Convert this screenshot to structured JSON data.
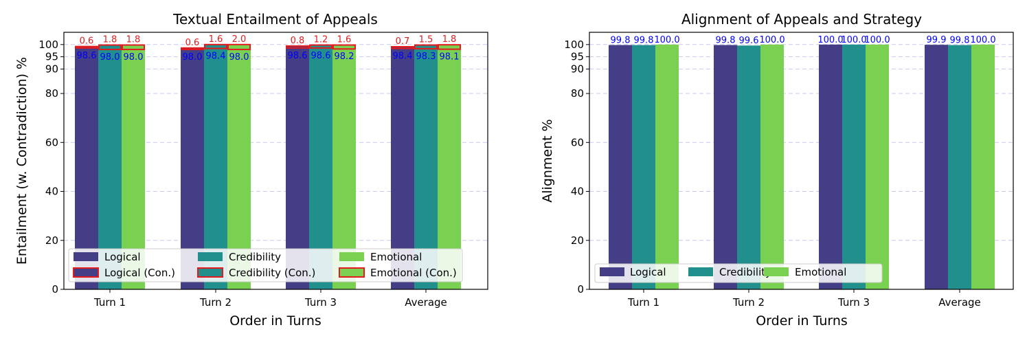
{
  "colors": {
    "logical": "#433E85",
    "credibility": "#21908C",
    "emotional": "#7AD151",
    "contradiction_edge": "#E41A1C",
    "entail_label": "#0000FF",
    "con_label": "#E41A1C",
    "grid": "#C9C9F0"
  },
  "chart_data": [
    {
      "type": "bar",
      "title": "Textual Entailment of Appeals",
      "xlabel": "Order in Turns",
      "ylabel": "Entailment (w. Contradiction) %",
      "ylim": [
        0,
        105
      ],
      "yticks": [
        "0",
        "20",
        "40",
        "60",
        "80",
        "90",
        "95",
        "100"
      ],
      "grid": "horizontal dashed",
      "categories": [
        "Turn 1",
        "Turn 2",
        "Turn 3",
        "Average"
      ],
      "series": [
        {
          "name": "Logical",
          "values": [
            98.6,
            98.0,
            98.6,
            98.4
          ],
          "labels": [
            "98.6",
            "98.0",
            "98.6",
            "98.4"
          ]
        },
        {
          "name": "Credibility",
          "values": [
            98.0,
            98.4,
            98.6,
            98.3
          ],
          "labels": [
            "98.0",
            "98.4",
            "98.6",
            "98.3"
          ]
        },
        {
          "name": "Emotional",
          "values": [
            98.0,
            98.0,
            98.2,
            98.1
          ],
          "labels": [
            "98.0",
            "98.0",
            "98.2",
            "98.1"
          ]
        }
      ],
      "stacked_series": [
        {
          "name": "Logical (Con.)",
          "base_of": "Logical",
          "values": [
            0.6,
            0.6,
            0.8,
            0.7
          ],
          "labels": [
            "0.6",
            "0.6",
            "0.8",
            "0.7"
          ]
        },
        {
          "name": "Credibility (Con.)",
          "base_of": "Credibility",
          "values": [
            1.8,
            1.6,
            1.2,
            1.5
          ],
          "labels": [
            "1.8",
            "1.6",
            "1.2",
            "1.5"
          ]
        },
        {
          "name": "Emotional (Con.)",
          "base_of": "Emotional",
          "values": [
            1.8,
            2.0,
            1.6,
            1.8
          ],
          "labels": [
            "1.8",
            "2.0",
            "1.6",
            "1.8"
          ]
        }
      ],
      "legend": {
        "position": "lower-center",
        "columns": 3,
        "entries": [
          "Logical",
          "Credibility",
          "Emotional",
          "Logical (Con.)",
          "Credibility (Con.)",
          "Emotional (Con.)"
        ]
      }
    },
    {
      "type": "bar",
      "title": "Alignment of Appeals and Strategy",
      "xlabel": "Order in Turns",
      "ylabel": "Alignment %",
      "ylim": [
        0,
        105
      ],
      "yticks": [
        "0",
        "20",
        "40",
        "60",
        "80",
        "90",
        "95",
        "100"
      ],
      "grid": "horizontal dashed",
      "categories": [
        "Turn 1",
        "Turn 2",
        "Turn 3",
        "Average"
      ],
      "series": [
        {
          "name": "Logical",
          "values": [
            99.8,
            99.8,
            100.0,
            99.9
          ],
          "labels": [
            "99.8",
            "99.8",
            "100.0",
            "99.9"
          ]
        },
        {
          "name": "Credibility",
          "values": [
            99.8,
            99.6,
            100.0,
            99.8
          ],
          "labels": [
            "99.8",
            "99.6",
            "100.0",
            "99.8"
          ]
        },
        {
          "name": "Emotional",
          "values": [
            100.0,
            100.0,
            100.0,
            100.0
          ],
          "labels": [
            "100.0",
            "100.0",
            "100.0",
            "100.0"
          ]
        }
      ],
      "legend": {
        "position": "lower-left",
        "columns": 3,
        "entries": [
          "Logical",
          "Credibility",
          "Emotional"
        ]
      }
    }
  ]
}
